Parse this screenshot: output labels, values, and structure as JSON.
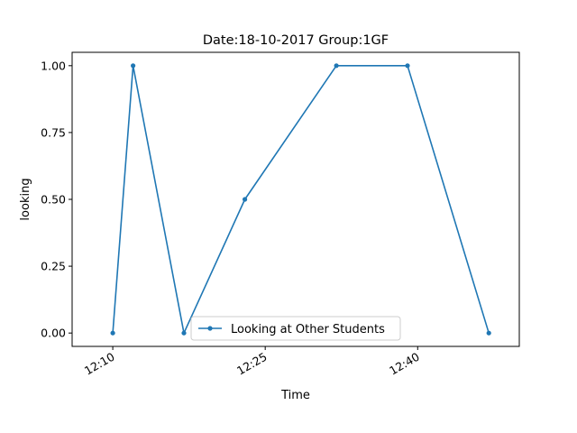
{
  "chart_data": {
    "type": "line",
    "title": "Date:18-10-2017  Group:1GF",
    "xlabel": "Time",
    "ylabel": "looking",
    "x_unit": "time (HH:MM)",
    "xlim": [
      "12:06",
      "12:50"
    ],
    "ylim": [
      -0.05,
      1.05
    ],
    "x_ticks": [
      "12:10",
      "12:25",
      "12:40"
    ],
    "y_ticks": [
      "0.00",
      "0.25",
      "0.50",
      "0.75",
      "1.00"
    ],
    "grid": false,
    "legend_position": "lower-center",
    "series": [
      {
        "name": "Looking at Other Students",
        "color": "#1f77b4",
        "marker": "dot",
        "x": [
          "12:10",
          "12:12",
          "12:17",
          "12:23",
          "12:32",
          "12:39",
          "12:47"
        ],
        "y": [
          0.0,
          1.0,
          0.0,
          0.5,
          1.0,
          1.0,
          0.0
        ]
      }
    ]
  }
}
